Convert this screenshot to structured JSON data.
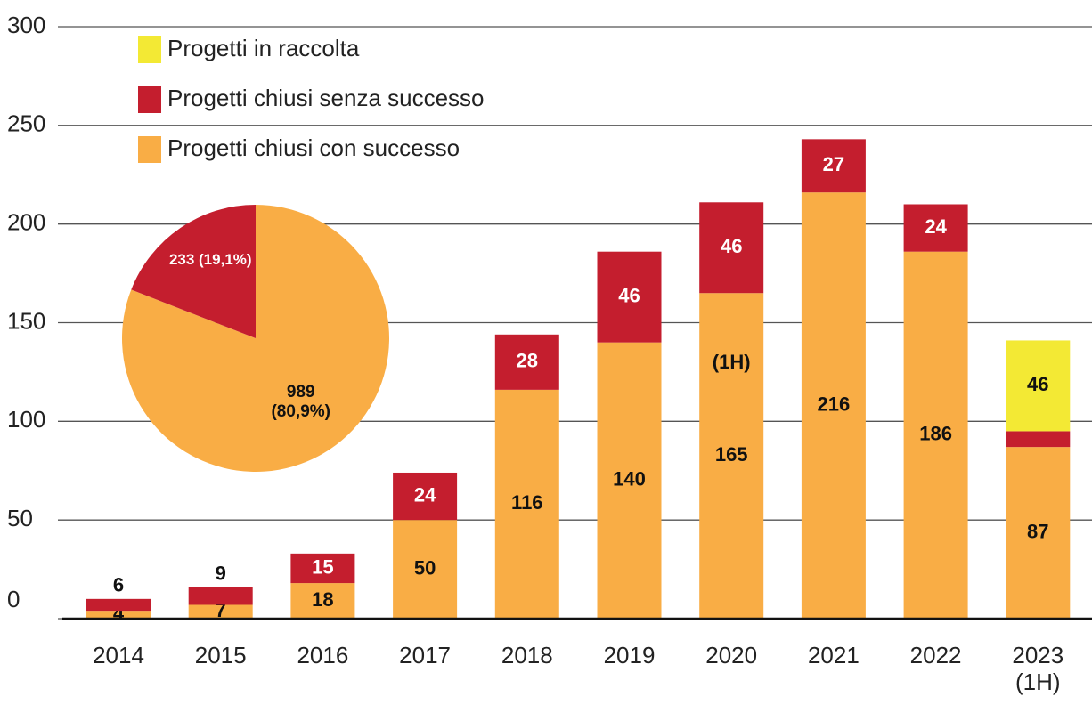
{
  "chart_data": [
    {
      "type": "bar",
      "stacked": true,
      "categories": [
        "2014",
        "2015",
        "2016",
        "2017",
        "2018",
        "2019",
        "2020",
        "2021",
        "2022",
        "2023 (1H)"
      ],
      "series": [
        {
          "name": "Progetti chiusi con successo",
          "color": "#f9ad45",
          "values": [
            4,
            7,
            18,
            50,
            116,
            140,
            165,
            216,
            186,
            87
          ]
        },
        {
          "name": "Progetti chiusi senza successo",
          "color": "#c41e2e",
          "values": [
            6,
            9,
            15,
            24,
            28,
            46,
            46,
            27,
            24,
            8
          ]
        },
        {
          "name": "Progetti in raccolta",
          "color": "#f3e934",
          "values": [
            null,
            null,
            null,
            null,
            null,
            null,
            null,
            null,
            null,
            46
          ]
        }
      ],
      "annotation": "(1H)",
      "ylim": [
        0,
        300
      ],
      "yticks": [
        0,
        50,
        100,
        150,
        200,
        250,
        300
      ],
      "grid": true
    },
    {
      "type": "pie",
      "categories": [
        "Progetti chiusi con successo",
        "Progetti chiusi senza successo"
      ],
      "values": [
        989,
        233
      ],
      "value_labels": [
        "989 (80,9%)",
        "233 (19,1%)"
      ],
      "colors": [
        "#f9ad45",
        "#c41e2e"
      ]
    }
  ]
}
